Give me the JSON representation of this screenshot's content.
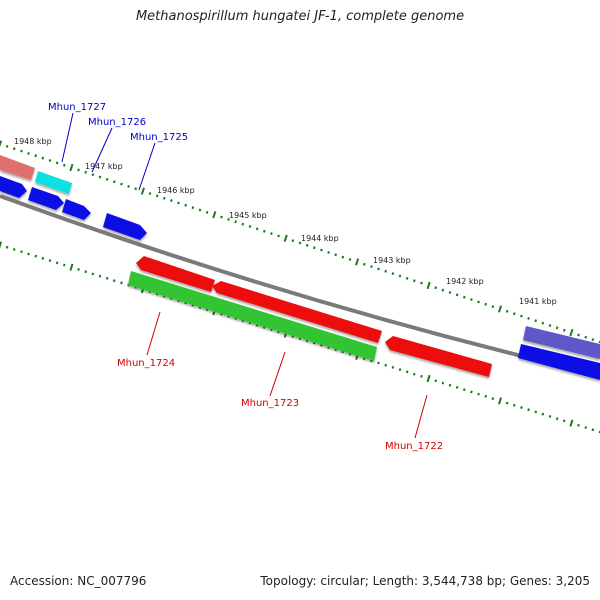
{
  "title": "Methanospirillum hungatei JF-1, complete genome",
  "footer": {
    "accession": "Accession: NC_007796",
    "topology": "Topology: circular; Length: 3,544,738 bp; Genes: 3,205"
  },
  "colors": {
    "backbone": "#808080",
    "tick": "#1a7a1a",
    "forward_label": "#0000c8",
    "reverse_label": "#d00000",
    "cds_blue": "#0000ee",
    "cds_red": "#ee0000",
    "cds_green": "#22bb22",
    "cds_cyan": "#00e0e0",
    "cds_pink": "#e06060",
    "cds_slate": "#5a50c0"
  },
  "scale_labels": [
    "1948 kbp",
    "1947 kbp",
    "1946 kbp",
    "1945 kbp",
    "1944 kbp",
    "1943 kbp",
    "1942 kbp",
    "1941 kbp"
  ],
  "gene_labels": {
    "forward": [
      "Mhun_1727",
      "Mhun_1726",
      "Mhun_1725"
    ],
    "reverse": [
      "Mhun_1724",
      "Mhun_1723",
      "Mhun_1722"
    ]
  }
}
